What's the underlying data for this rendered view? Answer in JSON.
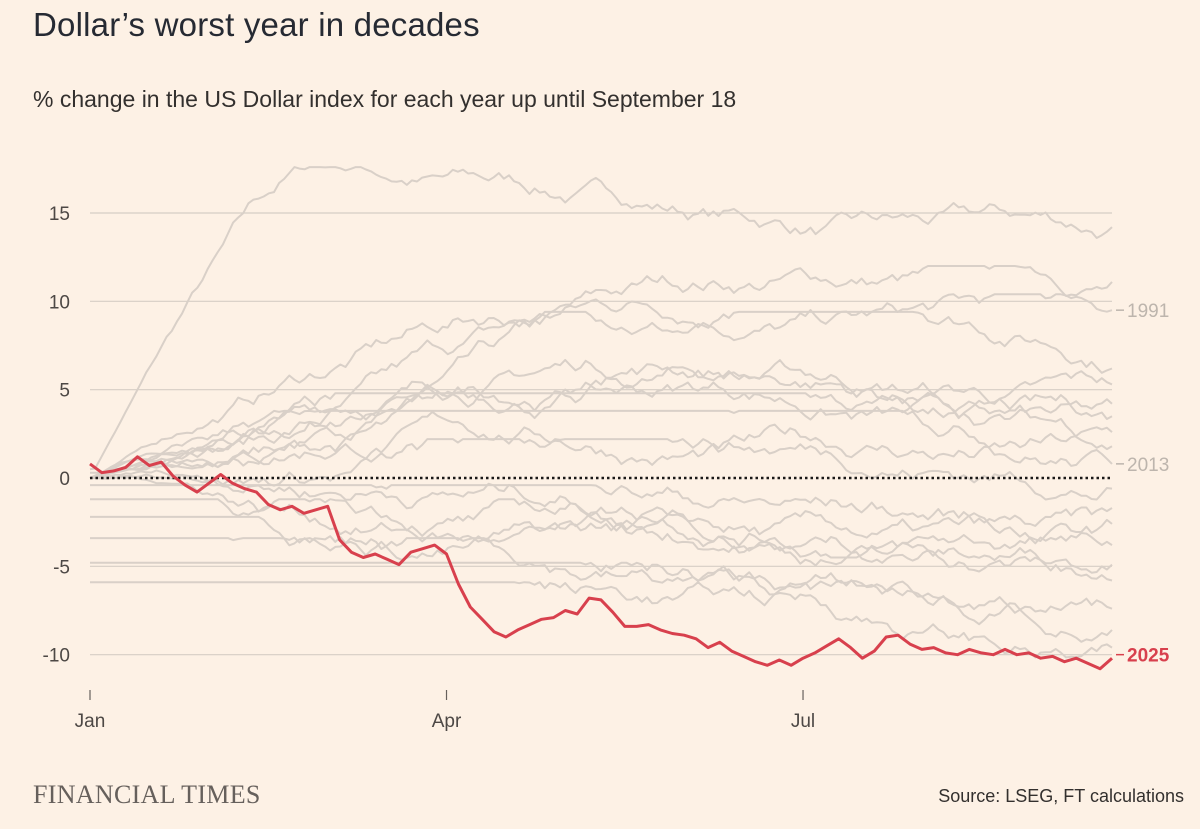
{
  "title": "Dollar’s worst year in decades",
  "subtitle": "% change in the US Dollar index for each year up until September 18",
  "brand": "FINANCIAL TIMES",
  "source": "Source: LSEG, FT calculations",
  "colors": {
    "background": "#fdf1e5",
    "highlight": "#d8404d",
    "background_series": "#d9d0c8",
    "grid": "#d6cec5",
    "label_grey": "#bdb5ad"
  },
  "chart_data": {
    "type": "line",
    "title": "Dollar’s worst year in decades",
    "xlabel": "",
    "ylabel": "% change in the US Dollar index",
    "x_range": [
      0,
      8.6
    ],
    "x_unit": "months since Jan 1",
    "ylim": [
      -12,
      17
    ],
    "grid": true,
    "y_ticks": [
      15,
      10,
      5,
      0,
      -5,
      -10
    ],
    "y_tick_labels": [
      "15",
      "10",
      "5",
      "0",
      "-5",
      "-10"
    ],
    "x_ticks": [
      {
        "label": "Jan",
        "x": 0
      },
      {
        "label": "Apr",
        "x": 3
      },
      {
        "label": "Jul",
        "x": 6
      }
    ],
    "zero_line": "dotted",
    "highlight_series": {
      "name": "2025",
      "points": [
        [
          0,
          0.8
        ],
        [
          0.1,
          0.3
        ],
        [
          0.2,
          0.4
        ],
        [
          0.3,
          0.6
        ],
        [
          0.4,
          1.2
        ],
        [
          0.5,
          0.7
        ],
        [
          0.6,
          0.9
        ],
        [
          0.7,
          0.1
        ],
        [
          0.8,
          -0.4
        ],
        [
          0.9,
          -0.8
        ],
        [
          1.0,
          -0.3
        ],
        [
          1.1,
          0.2
        ],
        [
          1.2,
          -0.3
        ],
        [
          1.3,
          -0.6
        ],
        [
          1.4,
          -0.8
        ],
        [
          1.5,
          -1.5
        ],
        [
          1.6,
          -1.8
        ],
        [
          1.7,
          -1.6
        ],
        [
          1.8,
          -2.0
        ],
        [
          1.9,
          -1.8
        ],
        [
          2.0,
          -1.6
        ],
        [
          2.1,
          -3.5
        ],
        [
          2.2,
          -4.2
        ],
        [
          2.3,
          -4.5
        ],
        [
          2.4,
          -4.3
        ],
        [
          2.5,
          -4.6
        ],
        [
          2.6,
          -4.9
        ],
        [
          2.7,
          -4.2
        ],
        [
          2.8,
          -4.0
        ],
        [
          2.9,
          -3.8
        ],
        [
          3.0,
          -4.3
        ],
        [
          3.1,
          -6.0
        ],
        [
          3.2,
          -7.3
        ],
        [
          3.3,
          -8.0
        ],
        [
          3.4,
          -8.7
        ],
        [
          3.5,
          -9.0
        ],
        [
          3.6,
          -8.6
        ],
        [
          3.7,
          -8.3
        ],
        [
          3.8,
          -8.0
        ],
        [
          3.9,
          -7.9
        ],
        [
          4.0,
          -7.5
        ],
        [
          4.1,
          -7.7
        ],
        [
          4.2,
          -6.8
        ],
        [
          4.3,
          -6.9
        ],
        [
          4.4,
          -7.6
        ],
        [
          4.5,
          -8.4
        ],
        [
          4.6,
          -8.4
        ],
        [
          4.7,
          -8.3
        ],
        [
          4.8,
          -8.6
        ],
        [
          4.9,
          -8.8
        ],
        [
          5.0,
          -8.9
        ],
        [
          5.1,
          -9.1
        ],
        [
          5.2,
          -9.6
        ],
        [
          5.3,
          -9.3
        ],
        [
          5.4,
          -9.8
        ],
        [
          5.5,
          -10.1
        ],
        [
          5.6,
          -10.4
        ],
        [
          5.7,
          -10.6
        ],
        [
          5.8,
          -10.3
        ],
        [
          5.9,
          -10.6
        ],
        [
          6.0,
          -10.2
        ],
        [
          6.1,
          -9.9
        ],
        [
          6.2,
          -9.5
        ],
        [
          6.3,
          -9.1
        ],
        [
          6.4,
          -9.6
        ],
        [
          6.5,
          -10.2
        ],
        [
          6.6,
          -9.8
        ],
        [
          6.7,
          -9.0
        ],
        [
          6.8,
          -8.9
        ],
        [
          6.9,
          -9.4
        ],
        [
          7.0,
          -9.7
        ],
        [
          7.1,
          -9.6
        ],
        [
          7.2,
          -9.9
        ],
        [
          7.3,
          -10.0
        ],
        [
          7.4,
          -9.7
        ],
        [
          7.5,
          -9.9
        ],
        [
          7.6,
          -10.0
        ],
        [
          7.7,
          -9.7
        ],
        [
          7.8,
          -10.0
        ],
        [
          7.9,
          -9.9
        ],
        [
          8.0,
          -10.2
        ],
        [
          8.1,
          -10.1
        ],
        [
          8.2,
          -10.4
        ],
        [
          8.3,
          -10.2
        ],
        [
          8.4,
          -10.5
        ],
        [
          8.5,
          -10.8
        ],
        [
          8.6,
          -10.2
        ]
      ]
    },
    "labeled_series": [
      {
        "name": "1991",
        "end_value": 9.5
      },
      {
        "name": "2013",
        "end_value": 0.8
      }
    ],
    "background_series_end_values": [
      14.2,
      11.1,
      9.5,
      6.2,
      5.3,
      4.2,
      3.5,
      2.6,
      1.8,
      0.8,
      -0.6,
      -1.7,
      -2.6,
      -3.8,
      -4.9,
      -5.8,
      -7.4,
      -8.6,
      -9.6
    ],
    "background_series_peak_values": [
      17.0,
      11.4,
      9.8,
      8.8,
      7.5,
      6.5,
      5.8,
      5.0,
      4.2,
      3.2,
      1.6,
      0.4,
      -0.4,
      -1.0,
      -1.8,
      -2.8,
      -4.0,
      -5.4,
      -6.5
    ],
    "background_series_trough_values": [
      0.5,
      0.3,
      -0.5,
      -1.0,
      -0.8,
      -1.6,
      -1.7,
      -2.2,
      -2.5,
      -2.8,
      -3.2,
      -3.6,
      -4.5,
      -5.2,
      -6.3,
      -7.6,
      -9.8,
      -10.7,
      -11.3
    ],
    "labels": {
      "1991": "1991",
      "2013": "2013",
      "2025": "2025"
    }
  }
}
